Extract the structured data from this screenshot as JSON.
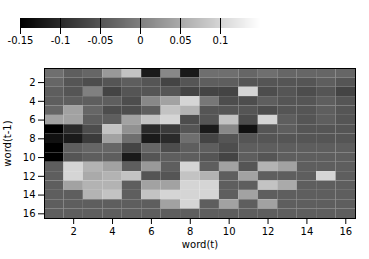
{
  "chart_data": {
    "type": "heatmap",
    "xlabel": "word(t)",
    "ylabel": "word(t-1)",
    "color": "gray",
    "vmin": -0.15,
    "vmax": 0.15,
    "colorbar_ticks": [
      0.1,
      0.05,
      0,
      -0.05,
      -0.1,
      -0.15
    ],
    "xlim": [
      0.5,
      16.5
    ],
    "ylim": [
      16.5,
      0.5
    ],
    "xticks": [
      2,
      4,
      6,
      8,
      10,
      12,
      14,
      16
    ],
    "yticks": [
      2,
      4,
      6,
      8,
      10,
      12,
      14,
      16
    ],
    "matrix": [
      [
        -0.02,
        -0.04,
        -0.03,
        0.03,
        0.08,
        -0.12,
        0.01,
        -0.12,
        -0.02,
        -0.02,
        -0.03,
        -0.02,
        -0.03,
        -0.03,
        -0.03,
        -0.03
      ],
      [
        -0.03,
        -0.05,
        -0.06,
        -0.05,
        -0.04,
        -0.05,
        -0.07,
        -0.05,
        -0.04,
        -0.04,
        -0.05,
        -0.05,
        -0.05,
        -0.05,
        -0.04,
        -0.05
      ],
      [
        -0.04,
        -0.05,
        0.0,
        -0.07,
        -0.05,
        -0.05,
        -0.05,
        -0.07,
        -0.07,
        -0.07,
        0.1,
        -0.06,
        -0.05,
        -0.06,
        -0.05,
        -0.07
      ],
      [
        -0.04,
        -0.04,
        -0.04,
        -0.04,
        -0.06,
        0.01,
        0.04,
        0.1,
        -0.01,
        -0.06,
        -0.06,
        -0.04,
        -0.05,
        -0.05,
        -0.04,
        -0.05
      ],
      [
        -0.03,
        0.04,
        -0.03,
        -0.06,
        -0.06,
        -0.04,
        0.08,
        0.06,
        -0.05,
        -0.05,
        -0.05,
        -0.06,
        -0.05,
        -0.05,
        -0.04,
        -0.05
      ],
      [
        0.04,
        0.04,
        -0.04,
        -0.04,
        0.04,
        0.08,
        0.1,
        -0.06,
        -0.05,
        0.08,
        -0.06,
        0.1,
        -0.04,
        -0.05,
        -0.04,
        -0.05
      ],
      [
        -0.15,
        -0.1,
        -0.06,
        0.08,
        0.02,
        -0.1,
        -0.08,
        -0.05,
        -0.12,
        0.01,
        -0.13,
        -0.05,
        -0.04,
        -0.05,
        -0.05,
        -0.05
      ],
      [
        -0.13,
        -0.12,
        -0.08,
        0.04,
        -0.02,
        -0.12,
        -0.1,
        -0.02,
        -0.07,
        -0.05,
        -0.05,
        -0.05,
        -0.05,
        -0.05,
        -0.05,
        -0.05
      ],
      [
        -0.15,
        -0.04,
        -0.03,
        -0.03,
        -0.07,
        -0.03,
        -0.06,
        -0.04,
        -0.04,
        -0.06,
        -0.04,
        -0.04,
        -0.04,
        -0.04,
        -0.04,
        -0.04
      ],
      [
        -0.15,
        -0.05,
        -0.04,
        -0.04,
        -0.12,
        -0.05,
        -0.04,
        -0.04,
        -0.05,
        -0.07,
        -0.04,
        -0.05,
        -0.04,
        -0.04,
        -0.04,
        -0.04
      ],
      [
        -0.04,
        0.1,
        0.06,
        0.04,
        -0.04,
        0.03,
        -0.04,
        0.1,
        -0.04,
        0.04,
        -0.05,
        0.06,
        0.04,
        -0.04,
        -0.04,
        -0.04
      ],
      [
        -0.04,
        0.1,
        0.05,
        0.06,
        0.08,
        -0.05,
        -0.05,
        0.08,
        0.06,
        -0.04,
        0.04,
        -0.04,
        -0.04,
        -0.04,
        0.1,
        -0.04
      ],
      [
        -0.04,
        0.04,
        0.06,
        0.06,
        -0.04,
        0.04,
        0.04,
        0.1,
        0.1,
        -0.04,
        -0.04,
        0.08,
        0.05,
        -0.04,
        -0.04,
        -0.04
      ],
      [
        -0.04,
        -0.04,
        0.06,
        0.08,
        -0.04,
        0.08,
        0.1,
        0.1,
        0.1,
        -0.04,
        0.04,
        -0.04,
        -0.04,
        -0.04,
        -0.04,
        -0.04
      ],
      [
        -0.04,
        -0.04,
        -0.04,
        -0.04,
        -0.04,
        -0.04,
        0.04,
        0.1,
        -0.04,
        0.04,
        -0.04,
        0.04,
        -0.04,
        -0.04,
        -0.04,
        -0.04
      ],
      [
        -0.04,
        -0.04,
        -0.04,
        -0.04,
        -0.04,
        -0.04,
        -0.04,
        -0.04,
        -0.04,
        -0.04,
        -0.04,
        -0.04,
        -0.04,
        -0.04,
        -0.04,
        -0.04
      ]
    ]
  }
}
